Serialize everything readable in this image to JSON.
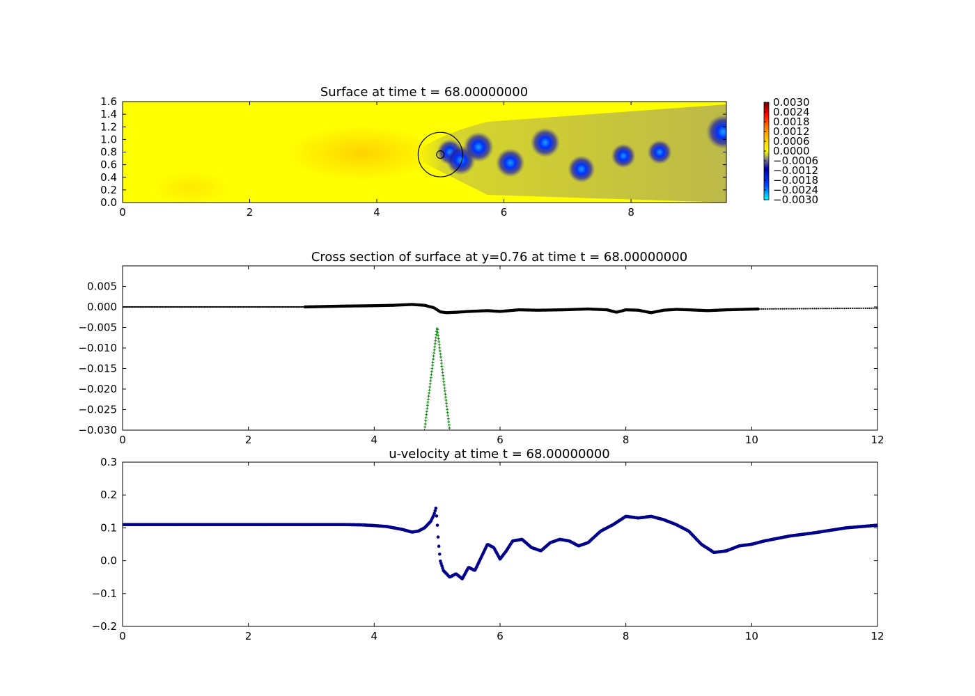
{
  "chart_data": [
    {
      "type": "heatmap",
      "title": "Surface at time t =    68.00000000",
      "xlim": [
        0,
        9.5
      ],
      "ylim": [
        0,
        1.6
      ],
      "xticks": [
        "0",
        "2",
        "4",
        "6",
        "8"
      ],
      "yticks": [
        "0.0",
        "0.2",
        "0.4",
        "0.6",
        "0.8",
        "1.0",
        "1.2",
        "1.4",
        "1.6"
      ],
      "colorbar": {
        "range": [
          -0.003,
          0.003
        ],
        "ticks": [
          "0.0030",
          "0.0024",
          "0.0018",
          "0.0012",
          "0.0006",
          "0.0000",
          "−0.0006",
          "−0.0012",
          "−0.0018",
          "−0.0024",
          "−0.0030"
        ]
      },
      "obstacle": {
        "center": [
          5.0,
          0.76
        ],
        "radius": 0.35,
        "inner_radius": 0.06
      },
      "vortices": [
        {
          "x": 5.15,
          "y": 0.8,
          "value": -0.0016
        },
        {
          "x": 5.32,
          "y": 0.67,
          "value": -0.0021
        },
        {
          "x": 5.6,
          "y": 0.88,
          "value": -0.0022
        },
        {
          "x": 6.1,
          "y": 0.63,
          "value": -0.002
        },
        {
          "x": 6.65,
          "y": 0.95,
          "value": -0.0021
        },
        {
          "x": 7.22,
          "y": 0.53,
          "value": -0.0018
        },
        {
          "x": 7.88,
          "y": 0.74,
          "value": -0.0014
        },
        {
          "x": 8.45,
          "y": 0.8,
          "value": -0.0014
        },
        {
          "x": 9.45,
          "y": 1.12,
          "value": -0.0027
        }
      ]
    },
    {
      "type": "scatter",
      "title": "Cross section of surface at y=0.76 at time t =    68.00000000",
      "xlim": [
        0,
        12
      ],
      "ylim": [
        -0.03,
        0.01
      ],
      "xticks": [
        "0",
        "2",
        "4",
        "6",
        "8",
        "10",
        "12"
      ],
      "yticks": [
        "0.005",
        "0.000",
        "−0.005",
        "−0.010",
        "−0.015",
        "−0.020",
        "−0.025",
        "−0.030"
      ],
      "series": [
        {
          "color": "#000000",
          "x": [
            0,
            1,
            2,
            2.9,
            3.5,
            4,
            4.3,
            4.6,
            4.8,
            4.95,
            5.05,
            5.15,
            5.3,
            5.5,
            5.8,
            6.0,
            6.3,
            6.6,
            7.0,
            7.4,
            7.7,
            7.85,
            8.0,
            8.2,
            8.4,
            8.6,
            8.8,
            9.0,
            9.3,
            9.6,
            10.1
          ],
          "y": [
            0.0,
            0.0,
            0.0,
            0.0,
            0.0002,
            0.0003,
            0.0004,
            0.0006,
            0.0004,
            -0.0002,
            -0.0012,
            -0.0014,
            -0.0013,
            -0.0011,
            -0.0009,
            -0.0011,
            -0.0007,
            -0.0008,
            -0.0007,
            -0.0005,
            -0.0007,
            -0.0013,
            -0.0007,
            -0.0008,
            -0.0014,
            -0.0008,
            -0.0006,
            -0.0007,
            -0.0009,
            -0.0007,
            -0.0005
          ]
        },
        {
          "color": "#000000",
          "x": [
            10.1,
            11.0,
            12.0
          ],
          "y": [
            -0.0005,
            -0.0004,
            -0.0003
          ]
        },
        {
          "color": "#008000",
          "x": [
            4.8,
            4.85,
            4.9,
            4.95,
            5.0,
            5.05,
            5.1,
            5.15,
            5.2
          ],
          "y": [
            -0.03,
            -0.0237,
            -0.0175,
            -0.0112,
            -0.005,
            -0.0112,
            -0.0175,
            -0.0237,
            -0.03
          ]
        }
      ]
    },
    {
      "type": "scatter",
      "title": "u-velocity at time t =    68.00000000",
      "xlim": [
        0,
        12
      ],
      "ylim": [
        -0.2,
        0.3
      ],
      "xticks": [
        "0",
        "2",
        "4",
        "6",
        "8",
        "10",
        "12"
      ],
      "yticks": [
        "0.3",
        "0.2",
        "0.1",
        "0.0",
        "−0.1",
        "−0.2"
      ],
      "series": [
        {
          "color": "#00008b",
          "x": [
            0,
            1,
            2,
            3,
            3.5,
            3.8,
            4.0,
            4.2,
            4.45,
            4.6,
            4.7,
            4.8,
            4.9,
            4.95,
            4.98,
            5.0,
            5.02,
            5.05,
            5.1,
            5.2,
            5.3,
            5.4,
            5.5,
            5.6,
            5.7,
            5.8,
            5.9,
            6.0,
            6.1,
            6.2,
            6.35,
            6.5,
            6.65,
            6.8,
            6.95,
            7.1,
            7.25,
            7.4,
            7.6,
            7.8,
            8.0,
            8.2,
            8.4,
            8.6,
            8.8,
            9.0,
            9.2,
            9.4,
            9.6,
            9.8,
            10.0,
            10.2,
            10.6,
            11.0,
            11.5,
            12.0
          ],
          "y": [
            0.11,
            0.11,
            0.11,
            0.11,
            0.11,
            0.109,
            0.107,
            0.104,
            0.095,
            0.087,
            0.09,
            0.1,
            0.12,
            0.14,
            0.16,
            0.12,
            0.06,
            0.0,
            -0.03,
            -0.05,
            -0.04,
            -0.055,
            -0.02,
            -0.03,
            0.01,
            0.05,
            0.04,
            0.005,
            0.03,
            0.06,
            0.065,
            0.04,
            0.03,
            0.055,
            0.065,
            0.06,
            0.045,
            0.055,
            0.09,
            0.11,
            0.135,
            0.13,
            0.135,
            0.125,
            0.11,
            0.09,
            0.05,
            0.025,
            0.03,
            0.045,
            0.05,
            0.06,
            0.075,
            0.085,
            0.1,
            0.108
          ]
        }
      ]
    }
  ]
}
